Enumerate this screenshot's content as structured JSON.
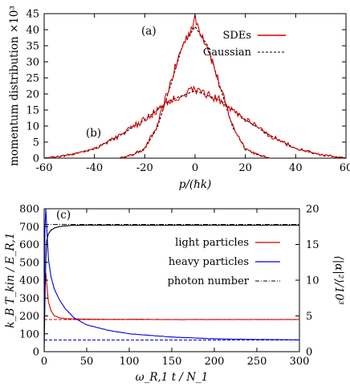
{
  "chart_data": [
    {
      "type": "line",
      "xlabel": "p/(ℏk)",
      "ylabel": "momentum distribution ×10³",
      "xlim": [
        -60,
        60
      ],
      "ylim": [
        0,
        45
      ],
      "xticks": [
        -60,
        -40,
        -20,
        0,
        20,
        40,
        60
      ],
      "yticks": [
        0,
        5,
        10,
        15,
        20,
        25,
        30,
        35,
        40,
        45
      ],
      "legend_position": "top-right",
      "annotations": [
        "(a)",
        "(b)"
      ],
      "series": [
        {
          "name": "SDEs",
          "color": "#d40000",
          "style": "solid",
          "curves": [
            {
              "label": "(a)",
              "x": [
                -30,
                -25,
                -20,
                -15,
                -10,
                -5,
                0,
                5,
                10,
                15,
                20,
                25,
                30
              ],
              "y": [
                0,
                1,
                3,
                10,
                23,
                35,
                43,
                35,
                22,
                10,
                3,
                1,
                0
              ]
            },
            {
              "label": "(b)",
              "x": [
                -60,
                -50,
                -40,
                -30,
                -20,
                -10,
                0,
                10,
                20,
                30,
                40,
                50,
                60
              ],
              "y": [
                0,
                1,
                3,
                7,
                12,
                18,
                21.5,
                18,
                12,
                7,
                3,
                1,
                0
              ]
            }
          ]
        },
        {
          "name": "Gaussian",
          "color": "#000000",
          "style": "dashed",
          "curves": [
            {
              "label": "(a)",
              "x": [
                -30,
                -25,
                -20,
                -15,
                -10,
                -5,
                0,
                5,
                10,
                15,
                20,
                25,
                30
              ],
              "y": [
                0,
                1,
                3,
                9.5,
                22,
                35,
                41,
                35,
                22,
                9.5,
                3,
                1,
                0
              ]
            },
            {
              "label": "(b)",
              "x": [
                -60,
                -50,
                -40,
                -30,
                -20,
                -10,
                0,
                10,
                20,
                30,
                40,
                50,
                60
              ],
              "y": [
                0,
                1,
                3,
                7,
                12,
                18,
                21,
                18,
                12,
                7,
                3,
                1,
                0
              ]
            }
          ]
        }
      ]
    },
    {
      "type": "line",
      "xlabel": "ω_R,1 t / N_1",
      "ylabel": "k_B T_kin / E_R,1",
      "y2label": "⟨|α|²⟩/10³",
      "xlim": [
        0,
        300
      ],
      "ylim": [
        0,
        800
      ],
      "y2lim": [
        0,
        20
      ],
      "xticks": [
        0,
        50,
        100,
        150,
        200,
        250,
        300
      ],
      "yticks": [
        0,
        100,
        200,
        300,
        400,
        500,
        600,
        700,
        800
      ],
      "y2ticks": [
        0,
        5,
        10,
        15,
        20
      ],
      "legend_position": "right",
      "annotations": [
        "(c)"
      ],
      "series": [
        {
          "name": "light particles",
          "color": "#d40000",
          "axis": "left",
          "x": [
            0,
            1,
            2,
            3,
            5,
            8,
            12,
            18,
            25,
            35,
            50,
            75,
            100,
            150,
            200,
            250,
            300
          ],
          "y": [
            300,
            400,
            440,
            380,
            280,
            230,
            200,
            190,
            185,
            183,
            182,
            181,
            181,
            180,
            180,
            180,
            180
          ],
          "asymptote": 180
        },
        {
          "name": "heavy particles",
          "color": "#0000dd",
          "axis": "left",
          "x": [
            0,
            1,
            2,
            3,
            5,
            8,
            12,
            18,
            25,
            35,
            50,
            75,
            100,
            150,
            200,
            250,
            300
          ],
          "y": [
            200,
            700,
            800,
            700,
            520,
            420,
            350,
            290,
            240,
            190,
            150,
            120,
            100,
            82,
            72,
            68,
            66
          ],
          "asymptote": 65
        },
        {
          "name": "photon number",
          "color": "#000000",
          "axis": "right",
          "x": [
            0,
            1,
            2,
            3,
            5,
            8,
            12,
            18,
            25,
            35,
            50,
            75,
            100,
            150,
            200,
            250,
            300
          ],
          "y": [
            0,
            8,
            13,
            15.5,
            16.5,
            17,
            17.3,
            17.5,
            17.6,
            17.7,
            17.7,
            17.7,
            17.7,
            17.7,
            17.7,
            17.7,
            17.7
          ],
          "asymptote": 17.8
        }
      ]
    }
  ]
}
